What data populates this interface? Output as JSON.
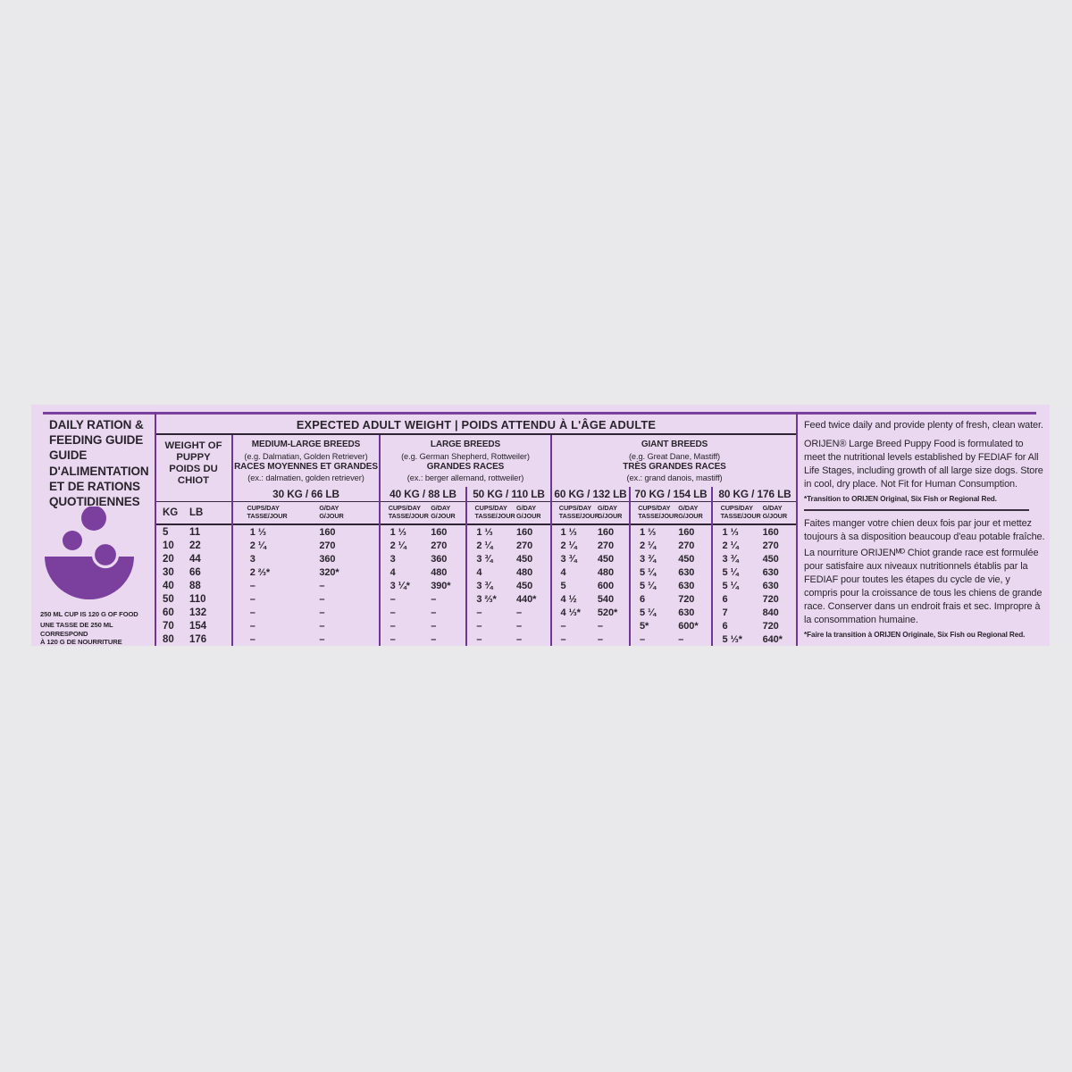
{
  "colors": {
    "page_bg": "#e9e8ea",
    "panel_bg": "#e9d8f0",
    "accent_purple": "#7b3f9d",
    "grid_purple": "#6f3795",
    "line_dark": "#2f2433",
    "text": "#2a242c"
  },
  "left_panel": {
    "title_lines": [
      "DAILY RATION &",
      "FEEDING GUIDE",
      "GUIDE",
      "D'ALIMENTATION",
      "ET DE RATIONS",
      "QUOTIDIENNES"
    ],
    "icon": "bowl-kibble-icon",
    "note_en": "250 ML CUP IS 120 G OF FOOD",
    "note_fr_line1": "UNE TASSE DE 250 ML CORRESPOND",
    "note_fr_line2": "À 120 G DE NOURRITURE"
  },
  "table": {
    "title": "EXPECTED ADULT WEIGHT | POIDS ATTENDU À L'ÂGE ADULTE",
    "weight_header_lines": [
      "WEIGHT OF",
      "PUPPY",
      "POIDS DU",
      "CHIOT"
    ],
    "kg_label": "KG",
    "lb_label": "LB",
    "groups": [
      {
        "name_en": "MEDIUM-LARGE BREEDS",
        "ex_en": "(e.g. Dalmatian, Golden Retriever)",
        "name_fr": "RACES MOYENNES ET GRANDES",
        "ex_fr": "(ex.: dalmatien, golden retriever)"
      },
      {
        "name_en": "LARGE BREEDS",
        "ex_en": "(e.g. German Shepherd, Rottweiler)",
        "name_fr": "GRANDES RACES",
        "ex_fr": "(ex.: berger allemand, rottweiler)"
      },
      {
        "name_en": "GIANT BREEDS",
        "ex_en": "(e.g. Great Dane, Mastiff)",
        "name_fr": "TRÈS GRANDES RACES",
        "ex_fr": "(ex.: grand danois, mastiff)"
      }
    ],
    "column_targets": [
      "30 KG / 66 LB",
      "40 KG / 88 LB",
      "50 KG / 110 LB",
      "60 KG / 132 LB",
      "70 KG / 154 LB",
      "80 KG / 176 LB"
    ],
    "unit_labels": {
      "cups_en": "CUPS/DAY",
      "cups_fr": "TASSE/JOUR",
      "g_en": "G/DAY",
      "g_fr": "G/JOUR"
    },
    "rows": [
      {
        "kg": "5",
        "lb": "11",
        "values": [
          {
            "cups": "1 ⅓",
            "g": "160"
          },
          {
            "cups": "1 ⅓",
            "g": "160"
          },
          {
            "cups": "1 ⅓",
            "g": "160"
          },
          {
            "cups": "1 ⅓",
            "g": "160"
          },
          {
            "cups": "1 ⅓",
            "g": "160"
          },
          {
            "cups": "1 ⅓",
            "g": "160"
          }
        ]
      },
      {
        "kg": "10",
        "lb": "22",
        "values": [
          {
            "cups": "2 ¼",
            "g": "270"
          },
          {
            "cups": "2 ¼",
            "g": "270"
          },
          {
            "cups": "2 ¼",
            "g": "270"
          },
          {
            "cups": "2 ¼",
            "g": "270"
          },
          {
            "cups": "2 ¼",
            "g": "270"
          },
          {
            "cups": "2 ¼",
            "g": "270"
          }
        ]
      },
      {
        "kg": "20",
        "lb": "44",
        "values": [
          {
            "cups": "3",
            "g": "360"
          },
          {
            "cups": "3",
            "g": "360"
          },
          {
            "cups": "3 ¾",
            "g": "450"
          },
          {
            "cups": "3 ¾",
            "g": "450"
          },
          {
            "cups": "3 ¾",
            "g": "450"
          },
          {
            "cups": "3 ¾",
            "g": "450"
          }
        ]
      },
      {
        "kg": "30",
        "lb": "66",
        "values": [
          {
            "cups": "2 ⅔*",
            "g": "320*"
          },
          {
            "cups": "4",
            "g": "480"
          },
          {
            "cups": "4",
            "g": "480"
          },
          {
            "cups": "4",
            "g": "480"
          },
          {
            "cups": "5 ¼",
            "g": "630"
          },
          {
            "cups": "5 ¼",
            "g": "630"
          }
        ]
      },
      {
        "kg": "40",
        "lb": "88",
        "values": [
          {
            "cups": "–",
            "g": "–"
          },
          {
            "cups": "3 ¼*",
            "g": "390*"
          },
          {
            "cups": "3 ¾",
            "g": "450"
          },
          {
            "cups": "5",
            "g": "600"
          },
          {
            "cups": "5 ¼",
            "g": "630"
          },
          {
            "cups": "5 ¼",
            "g": "630"
          }
        ]
      },
      {
        "kg": "50",
        "lb": "110",
        "values": [
          {
            "cups": "–",
            "g": "–"
          },
          {
            "cups": "–",
            "g": "–"
          },
          {
            "cups": "3 ⅔*",
            "g": "440*"
          },
          {
            "cups": "4 ½",
            "g": "540"
          },
          {
            "cups": "6",
            "g": "720"
          },
          {
            "cups": "6",
            "g": "720"
          }
        ]
      },
      {
        "kg": "60",
        "lb": "132",
        "values": [
          {
            "cups": "–",
            "g": "–"
          },
          {
            "cups": "–",
            "g": "–"
          },
          {
            "cups": "–",
            "g": "–"
          },
          {
            "cups": "4 ⅓*",
            "g": "520*"
          },
          {
            "cups": "5 ¼",
            "g": "630"
          },
          {
            "cups": "7",
            "g": "840"
          }
        ]
      },
      {
        "kg": "70",
        "lb": "154",
        "values": [
          {
            "cups": "–",
            "g": "–"
          },
          {
            "cups": "–",
            "g": "–"
          },
          {
            "cups": "–",
            "g": "–"
          },
          {
            "cups": "–",
            "g": "–"
          },
          {
            "cups": "5*",
            "g": "600*"
          },
          {
            "cups": "6",
            "g": "720"
          }
        ]
      },
      {
        "kg": "80",
        "lb": "176",
        "values": [
          {
            "cups": "–",
            "g": "–"
          },
          {
            "cups": "–",
            "g": "–"
          },
          {
            "cups": "–",
            "g": "–"
          },
          {
            "cups": "–",
            "g": "–"
          },
          {
            "cups": "–",
            "g": "–"
          },
          {
            "cups": "5 ⅓*",
            "g": "640*"
          }
        ]
      }
    ]
  },
  "right_panel": {
    "en_p1": "Feed twice daily and provide plenty of fresh, clean water.",
    "en_p2": "ORIJEN® Large Breed Puppy Food is formulated to meet the nutritional levels established by FEDIAF for All Life Stages, including growth of all large size dogs. Store in cool, dry place. Not Fit for Human Consumption.",
    "en_footnote": "*Transition to ORIJEN Original, Six Fish or Regional Red.",
    "fr_p1": "Faites manger votre chien deux fois par jour et mettez toujours à sa disposition beaucoup d'eau potable fraîche.",
    "fr_p2": "La nourriture ORIJENᴹᴰ Chiot grande race est formulée pour satisfaire aux niveaux nutritionnels établis par la FEDIAF pour toutes les étapes du cycle de vie, y compris pour la croissance de tous les chiens de grande race. Conserver dans un endroit frais et sec. Impropre à la consommation humaine.",
    "fr_footnote": "*Faire la transition à ORIJEN Originale, Six Fish ou Regional Red."
  }
}
